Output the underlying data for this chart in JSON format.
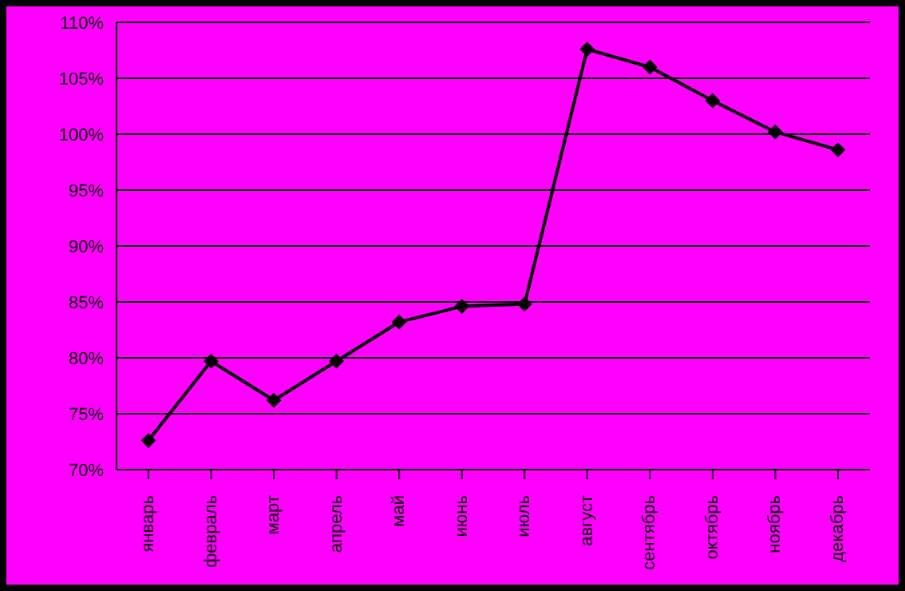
{
  "chart_data": {
    "type": "line",
    "categories": [
      "январь",
      "февраль",
      "март",
      "апрель",
      "май",
      "июнь",
      "июль",
      "август",
      "сентябрь",
      "октябрь",
      "ноябрь",
      "декабрь"
    ],
    "series": [
      {
        "color": "#000000",
        "values": [
          72.6,
          79.7,
          76.2,
          79.7,
          83.2,
          84.6,
          84.8,
          107.6,
          106.0,
          103.0,
          100.2,
          98.6
        ]
      }
    ],
    "ylim": [
      70,
      110
    ],
    "yticks": [
      {
        "value": 70,
        "label": "70%"
      },
      {
        "value": 75,
        "label": "75%"
      },
      {
        "value": 80,
        "label": "80%"
      },
      {
        "value": 85,
        "label": "85%"
      },
      {
        "value": 90,
        "label": "90%"
      },
      {
        "value": 95,
        "label": "95%"
      },
      {
        "value": 100,
        "label": "100%"
      },
      {
        "value": 105,
        "label": "105%"
      },
      {
        "value": 110,
        "label": "110%"
      }
    ],
    "grid": "y",
    "marker": "diamond",
    "line_style": "solid",
    "legend": false
  }
}
